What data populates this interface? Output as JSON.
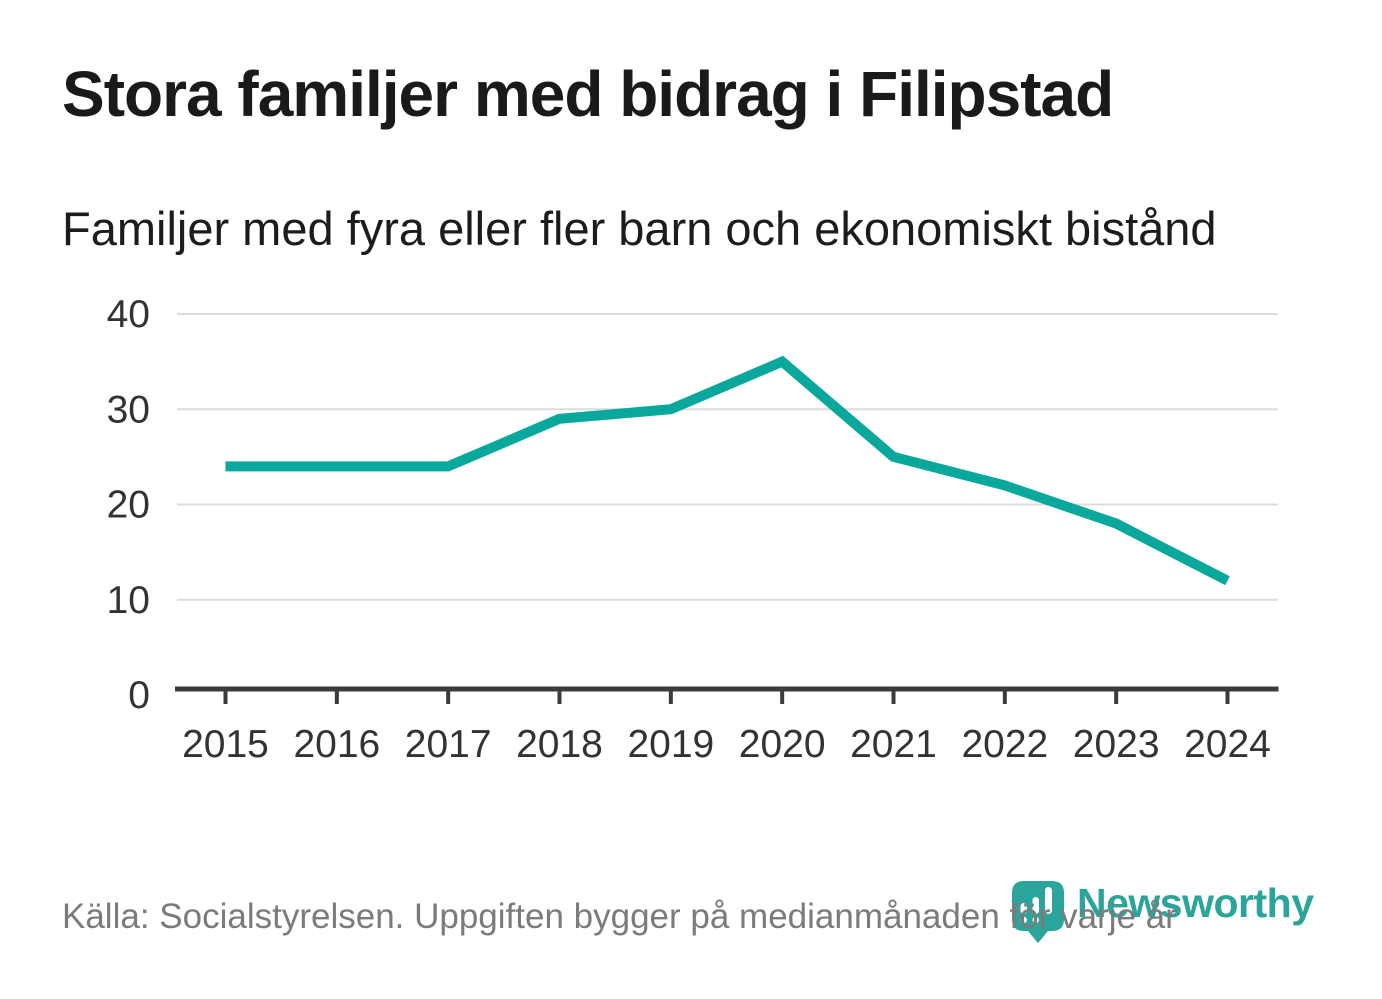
{
  "header": {
    "title": "Stora familjer med bidrag i Filipstad",
    "subtitle": "Familjer med fyra eller fler barn och ekonomiskt bistånd"
  },
  "chart_data": {
    "type": "line",
    "categories": [
      "2015",
      "2016",
      "2017",
      "2018",
      "2019",
      "2020",
      "2021",
      "2022",
      "2023",
      "2024"
    ],
    "values": [
      24,
      24,
      24,
      29,
      30,
      35,
      25,
      22,
      18,
      12
    ],
    "series_name": "Familjer med fyra eller fler barn och ekonomiskt bistånd",
    "title": "Stora familjer med bidrag i Filipstad",
    "xlabel": "",
    "ylabel": "",
    "ylim": [
      0,
      40
    ],
    "yticks": [
      0,
      10,
      20,
      30,
      40
    ],
    "grid": true,
    "legend": "none",
    "line_color": "#0aa89c"
  },
  "footer": {
    "source": "Källa: Socialstyrelsen. Uppgiften bygger på medianmånaden för varje år",
    "brand": {
      "wordmark": "Newsworthy",
      "icon": "newsworthy-pin-bar-chart-icon",
      "color": "#2ba49b"
    }
  },
  "colors": {
    "line": "#0aa89c",
    "grid": "#dcdcdc",
    "axis": "#3b3b3b",
    "title_text": "#1a1a1a",
    "axis_text": "#333333",
    "source_text": "#7b7b7b",
    "brand": "#2ba49b",
    "background": "#ffffff"
  }
}
